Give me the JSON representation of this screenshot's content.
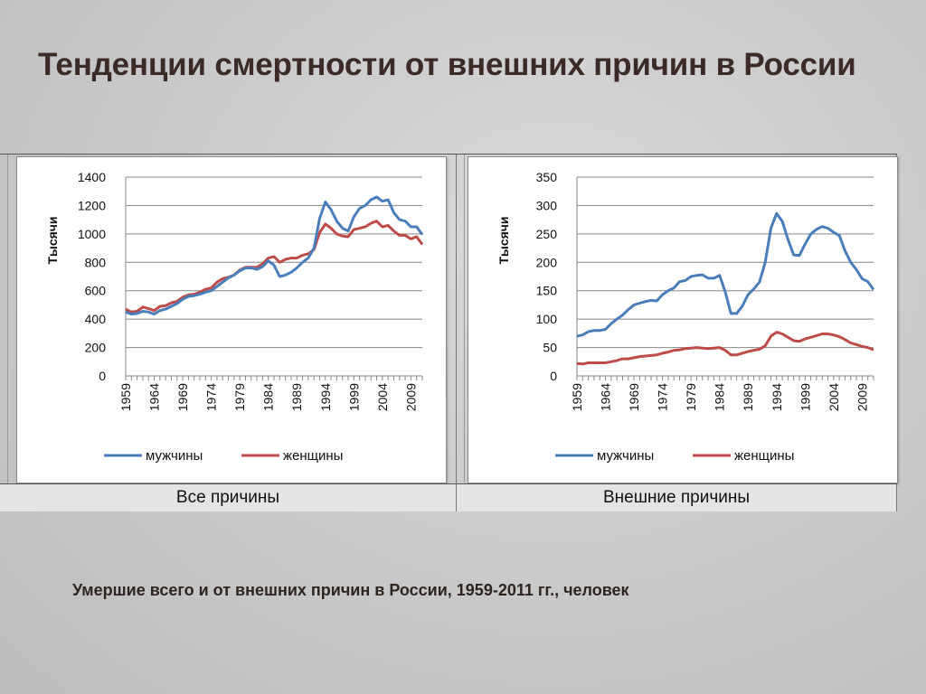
{
  "title": "Тенденции смертности от внешних причин в России",
  "caption": "Умершие всего и от внешних причин в России, 1959-2011 гг., человек",
  "colors": {
    "men": "#4a7ebb",
    "women": "#be4b48",
    "grid": "#868686"
  },
  "chart_data": [
    {
      "type": "line",
      "panel_label": "Все причины",
      "ylabel": "Тысячи",
      "ylim": [
        0,
        1400
      ],
      "yticks": [
        0,
        200,
        400,
        600,
        800,
        1000,
        1200,
        1400
      ],
      "xticks": [
        "1959",
        "1964",
        "1969",
        "1974",
        "1979",
        "1984",
        "1989",
        "1994",
        "1999",
        "2004",
        "2009"
      ],
      "legend": "bottom",
      "x": [
        1959,
        1960,
        1961,
        1962,
        1963,
        1964,
        1965,
        1966,
        1967,
        1968,
        1969,
        1970,
        1971,
        1972,
        1973,
        1974,
        1975,
        1976,
        1977,
        1978,
        1979,
        1980,
        1981,
        1982,
        1983,
        1984,
        1985,
        1986,
        1987,
        1988,
        1989,
        1990,
        1991,
        1992,
        1993,
        1994,
        1995,
        1996,
        1997,
        1998,
        1999,
        2000,
        2001,
        2002,
        2003,
        2004,
        2005,
        2006,
        2007,
        2008,
        2009,
        2010,
        2011
      ],
      "series": [
        {
          "name": "мужчины",
          "values": [
            450,
            435,
            440,
            455,
            450,
            435,
            460,
            470,
            490,
            510,
            540,
            560,
            565,
            575,
            590,
            600,
            630,
            660,
            690,
            710,
            740,
            760,
            760,
            750,
            770,
            810,
            780,
            700,
            710,
            730,
            760,
            800,
            830,
            900,
            1110,
            1225,
            1170,
            1090,
            1040,
            1020,
            1120,
            1180,
            1200,
            1240,
            1260,
            1230,
            1240,
            1150,
            1100,
            1090,
            1050,
            1050,
            995
          ]
        },
        {
          "name": "женщины",
          "values": [
            470,
            450,
            455,
            485,
            475,
            460,
            490,
            495,
            515,
            525,
            555,
            570,
            575,
            590,
            610,
            620,
            660,
            685,
            695,
            710,
            745,
            765,
            765,
            765,
            790,
            830,
            840,
            800,
            820,
            830,
            830,
            850,
            860,
            890,
            1010,
            1070,
            1040,
            1000,
            985,
            980,
            1030,
            1040,
            1050,
            1075,
            1090,
            1050,
            1060,
            1020,
            990,
            990,
            965,
            980,
            925
          ]
        }
      ]
    },
    {
      "type": "line",
      "panel_label": "Внешние причины",
      "ylabel": "Тысячи",
      "ylim": [
        0,
        350
      ],
      "yticks": [
        0,
        50,
        100,
        150,
        200,
        250,
        300,
        350
      ],
      "xticks": [
        "1959",
        "1964",
        "1969",
        "1974",
        "1979",
        "1984",
        "1989",
        "1994",
        "1999",
        "2004",
        "2009"
      ],
      "legend": "bottom",
      "x": [
        1959,
        1960,
        1961,
        1962,
        1963,
        1964,
        1965,
        1966,
        1967,
        1968,
        1969,
        1970,
        1971,
        1972,
        1973,
        1974,
        1975,
        1976,
        1977,
        1978,
        1979,
        1980,
        1981,
        1982,
        1983,
        1984,
        1985,
        1986,
        1987,
        1988,
        1989,
        1990,
        1991,
        1992,
        1993,
        1994,
        1995,
        1996,
        1997,
        1998,
        1999,
        2000,
        2001,
        2002,
        2003,
        2004,
        2005,
        2006,
        2007,
        2008,
        2009,
        2010,
        2011
      ],
      "series": [
        {
          "name": "мужчины",
          "values": [
            70,
            72,
            78,
            80,
            80,
            82,
            92,
            100,
            107,
            117,
            125,
            128,
            131,
            133,
            132,
            143,
            150,
            155,
            166,
            168,
            175,
            177,
            178,
            172,
            172,
            177,
            148,
            110,
            110,
            123,
            143,
            153,
            165,
            200,
            260,
            286,
            272,
            240,
            213,
            212,
            232,
            250,
            258,
            263,
            260,
            253,
            247,
            220,
            200,
            187,
            171,
            166,
            152
          ]
        },
        {
          "name": "женщины",
          "values": [
            22,
            21,
            23,
            23,
            23,
            23,
            25,
            27,
            30,
            30,
            32,
            34,
            35,
            36,
            37,
            40,
            42,
            45,
            46,
            48,
            49,
            50,
            49,
            48,
            49,
            50,
            45,
            37,
            37,
            40,
            43,
            45,
            47,
            53,
            70,
            77,
            74,
            68,
            62,
            61,
            65,
            68,
            71,
            74,
            74,
            72,
            69,
            64,
            58,
            55,
            52,
            50,
            46
          ]
        }
      ]
    }
  ]
}
